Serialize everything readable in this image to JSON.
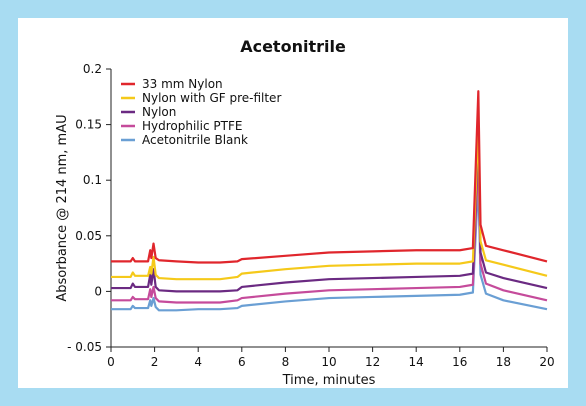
{
  "chart_data": {
    "type": "line",
    "title": "Acetonitrile",
    "xlabel": "Time, minutes",
    "ylabel": "Absorbance @ 214 nm, mAU",
    "xlim": [
      0,
      20
    ],
    "ylim": [
      -0.05,
      0.2
    ],
    "x_ticks": [
      0,
      2,
      4,
      6,
      8,
      10,
      12,
      14,
      16,
      18,
      20
    ],
    "y_ticks": [
      -0.05,
      0,
      0.05,
      0.1,
      0.15,
      0.2
    ],
    "y_tick_labels": [
      "- 0.05",
      "0",
      "0.05",
      "0.1",
      "0.15",
      "0.2"
    ],
    "grid": false,
    "legend_position": "top-left",
    "series": [
      {
        "name": "33 mm Nylon",
        "color": "#e0262c",
        "points": [
          [
            0,
            0.027
          ],
          [
            0.9,
            0.027
          ],
          [
            1.0,
            0.03
          ],
          [
            1.1,
            0.027
          ],
          [
            1.7,
            0.027
          ],
          [
            1.8,
            0.037
          ],
          [
            1.85,
            0.03
          ],
          [
            1.95,
            0.043
          ],
          [
            2.05,
            0.03
          ],
          [
            2.2,
            0.028
          ],
          [
            3,
            0.027
          ],
          [
            4,
            0.026
          ],
          [
            5,
            0.026
          ],
          [
            5.8,
            0.027
          ],
          [
            6,
            0.029
          ],
          [
            8,
            0.032
          ],
          [
            10,
            0.035
          ],
          [
            12,
            0.036
          ],
          [
            14,
            0.037
          ],
          [
            16,
            0.037
          ],
          [
            16.6,
            0.039
          ],
          [
            16.85,
            0.18
          ],
          [
            16.95,
            0.06
          ],
          [
            17.2,
            0.041
          ],
          [
            18,
            0.037
          ],
          [
            20,
            0.027
          ]
        ]
      },
      {
        "name": "Nylon with GF pre-filter",
        "color": "#f5c91a",
        "points": [
          [
            0,
            0.013
          ],
          [
            0.9,
            0.013
          ],
          [
            1.0,
            0.017
          ],
          [
            1.1,
            0.014
          ],
          [
            1.7,
            0.014
          ],
          [
            1.8,
            0.022
          ],
          [
            1.85,
            0.016
          ],
          [
            1.95,
            0.031
          ],
          [
            2.05,
            0.015
          ],
          [
            2.2,
            0.012
          ],
          [
            3,
            0.011
          ],
          [
            4,
            0.011
          ],
          [
            5,
            0.011
          ],
          [
            5.8,
            0.013
          ],
          [
            6,
            0.016
          ],
          [
            8,
            0.02
          ],
          [
            10,
            0.023
          ],
          [
            12,
            0.024
          ],
          [
            14,
            0.025
          ],
          [
            16,
            0.025
          ],
          [
            16.6,
            0.027
          ],
          [
            16.85,
            0.15
          ],
          [
            16.95,
            0.045
          ],
          [
            17.2,
            0.028
          ],
          [
            18,
            0.024
          ],
          [
            20,
            0.014
          ]
        ]
      },
      {
        "name": "Nylon",
        "color": "#6b2a82",
        "points": [
          [
            0,
            0.003
          ],
          [
            0.9,
            0.003
          ],
          [
            1.0,
            0.007
          ],
          [
            1.1,
            0.004
          ],
          [
            1.7,
            0.004
          ],
          [
            1.8,
            0.015
          ],
          [
            1.85,
            0.006
          ],
          [
            1.95,
            0.02
          ],
          [
            2.05,
            0.004
          ],
          [
            2.2,
            0.001
          ],
          [
            3,
            0
          ],
          [
            4,
            0
          ],
          [
            5,
            0
          ],
          [
            5.8,
            0.001
          ],
          [
            6,
            0.004
          ],
          [
            8,
            0.008
          ],
          [
            10,
            0.011
          ],
          [
            12,
            0.012
          ],
          [
            14,
            0.013
          ],
          [
            16,
            0.014
          ],
          [
            16.6,
            0.016
          ],
          [
            16.85,
            0.14
          ],
          [
            16.95,
            0.035
          ],
          [
            17.2,
            0.017
          ],
          [
            18,
            0.012
          ],
          [
            20,
            0.003
          ]
        ]
      },
      {
        "name": "Hydrophilic PTFE",
        "color": "#c54b9b",
        "points": [
          [
            0,
            -0.008
          ],
          [
            0.9,
            -0.008
          ],
          [
            1.0,
            -0.005
          ],
          [
            1.1,
            -0.007
          ],
          [
            1.7,
            -0.007
          ],
          [
            1.8,
            0.002
          ],
          [
            1.85,
            -0.005
          ],
          [
            1.95,
            0.004
          ],
          [
            2.05,
            -0.006
          ],
          [
            2.2,
            -0.009
          ],
          [
            3,
            -0.01
          ],
          [
            4,
            -0.01
          ],
          [
            5,
            -0.01
          ],
          [
            5.8,
            -0.008
          ],
          [
            6,
            -0.006
          ],
          [
            8,
            -0.002
          ],
          [
            10,
            0.001
          ],
          [
            12,
            0.002
          ],
          [
            14,
            0.003
          ],
          [
            16,
            0.004
          ],
          [
            16.6,
            0.006
          ],
          [
            16.85,
            0.12
          ],
          [
            16.95,
            0.025
          ],
          [
            17.2,
            0.007
          ],
          [
            18,
            0.001
          ],
          [
            20,
            -0.008
          ]
        ]
      },
      {
        "name": "Acetonitrile Blank",
        "color": "#6a9fd4",
        "points": [
          [
            0,
            -0.016
          ],
          [
            0.9,
            -0.016
          ],
          [
            1.0,
            -0.013
          ],
          [
            1.1,
            -0.015
          ],
          [
            1.7,
            -0.015
          ],
          [
            1.8,
            -0.008
          ],
          [
            1.85,
            -0.013
          ],
          [
            1.95,
            -0.006
          ],
          [
            2.05,
            -0.014
          ],
          [
            2.2,
            -0.017
          ],
          [
            3,
            -0.017
          ],
          [
            4,
            -0.016
          ],
          [
            5,
            -0.016
          ],
          [
            5.8,
            -0.015
          ],
          [
            6,
            -0.013
          ],
          [
            8,
            -0.009
          ],
          [
            10,
            -0.006
          ],
          [
            12,
            -0.005
          ],
          [
            14,
            -0.004
          ],
          [
            16,
            -0.003
          ],
          [
            16.6,
            -0.001
          ],
          [
            16.85,
            0.1
          ],
          [
            16.95,
            0.015
          ],
          [
            17.2,
            -0.002
          ],
          [
            18,
            -0.008
          ],
          [
            20,
            -0.016
          ]
        ]
      }
    ]
  }
}
